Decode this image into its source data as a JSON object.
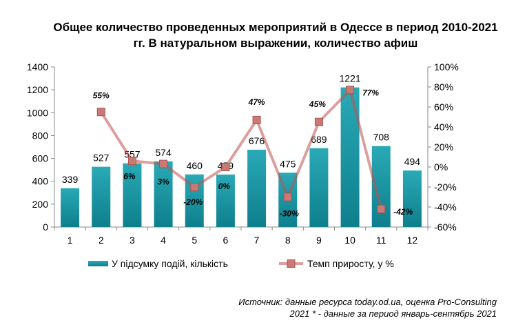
{
  "chart_data": {
    "type": "bar",
    "title": "Общее количество проведенных мероприятий в Одессе в период 2010-2021 гг. В натуральном выражении, количество афиш",
    "categories": [
      "1",
      "2",
      "3",
      "4",
      "5",
      "6",
      "7",
      "8",
      "9",
      "10",
      "11",
      "12"
    ],
    "series": [
      {
        "name": "У підсумку подій, кількість",
        "type": "bar",
        "axis": "left",
        "color": "#1a9aa8",
        "values": [
          339,
          527,
          557,
          574,
          460,
          459,
          676,
          475,
          689,
          1221,
          708,
          494
        ],
        "labels": [
          "339",
          "527",
          "557",
          "574",
          "460",
          "459",
          "676",
          "475",
          "689",
          "1221",
          "708",
          "494"
        ]
      },
      {
        "name": "Темп приросту, у %",
        "type": "line",
        "axis": "right",
        "color": "#c0504d",
        "values": [
          null,
          55,
          6,
          3,
          -20,
          0,
          47,
          -30,
          45,
          77,
          -42,
          null
        ],
        "labels": [
          "",
          "55%",
          "6%",
          "3%",
          "-20%",
          "0%",
          "47%",
          "-30%",
          "45%",
          "77%",
          "-42%",
          ""
        ]
      }
    ],
    "y_left": {
      "min": 0,
      "max": 1400,
      "step": 200,
      "ticks": [
        "0",
        "200",
        "400",
        "600",
        "800",
        "1000",
        "1200",
        "1400"
      ]
    },
    "y_right": {
      "min": -60,
      "max": 100,
      "step": 20,
      "ticks": [
        "-60%",
        "-40%",
        "-20%",
        "0%",
        "20%",
        "40%",
        "60%",
        "80%",
        "100%"
      ]
    },
    "grid": false,
    "legend_position": "bottom"
  },
  "source_line1": "Источник: данные ресурса today.od.ua, оценка Pro-Consulting",
  "source_line2": "2021 * - данные за период январь-сентябрь 2021"
}
